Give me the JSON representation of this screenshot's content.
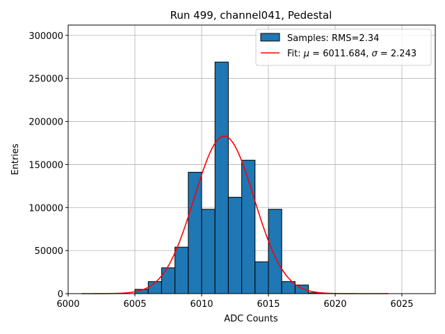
{
  "chart_data": {
    "type": "bar",
    "title": "Run 499, channel041, Pedestal",
    "xlabel": "ADC Counts",
    "ylabel": "Entries",
    "xlim": [
      6000,
      6027.5
    ],
    "ylim": [
      0,
      312000
    ],
    "grid": true,
    "x_ticks": [
      6000,
      6005,
      6010,
      6015,
      6020,
      6025
    ],
    "y_ticks": [
      0,
      50000,
      100000,
      150000,
      200000,
      250000,
      300000
    ],
    "bins": {
      "edges": [
        6005,
        6006,
        6007,
        6008,
        6009,
        6010,
        6011,
        6012,
        6013,
        6014,
        6015,
        6016,
        6017,
        6018,
        6019
      ],
      "values": [
        5000,
        14000,
        30000,
        54000,
        141000,
        98000,
        269000,
        112000,
        155000,
        37000,
        98000,
        14000,
        10000,
        1000
      ],
      "color": "#1f77b4",
      "edgecolor": "#000000"
    },
    "fit": {
      "mu": 6011.684,
      "sigma": 2.243,
      "peak": 183000,
      "x_range": [
        6001,
        6024
      ],
      "color": "#ff0000"
    },
    "legend": {
      "position": "top-right",
      "entries": [
        {
          "label": "Samples: RMS=2.34",
          "kind": "patch",
          "color": "#1f77b4"
        },
        {
          "label_parts": [
            "Fit: ",
            "μ",
            " = 6011.684, ",
            "σ",
            " = 2.243"
          ],
          "kind": "line",
          "color": "#ff0000"
        }
      ]
    }
  }
}
